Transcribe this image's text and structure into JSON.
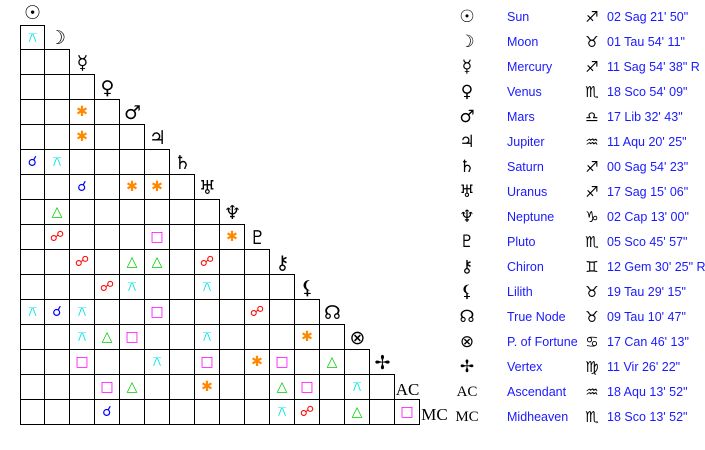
{
  "bodies": [
    {
      "name": "Sun",
      "glyph": "☉",
      "sign_glyph": "♐",
      "position": "02 Sag 21' 50\""
    },
    {
      "name": "Moon",
      "glyph": "☽",
      "sign_glyph": "♉",
      "position": "01 Tau 54' 11\""
    },
    {
      "name": "Mercury",
      "glyph": "☿",
      "sign_glyph": "♐",
      "position": "11 Sag 54' 38\" R"
    },
    {
      "name": "Venus",
      "glyph": "♀",
      "sign_glyph": "♏",
      "position": "18 Sco 54' 09\""
    },
    {
      "name": "Mars",
      "glyph": "♂",
      "sign_glyph": "♎",
      "position": "17 Lib 32' 43\""
    },
    {
      "name": "Jupiter",
      "glyph": "♃",
      "sign_glyph": "♒",
      "position": "11 Aqu 20' 25\""
    },
    {
      "name": "Saturn",
      "glyph": "♄",
      "sign_glyph": "♐",
      "position": "00 Sag 54' 23\""
    },
    {
      "name": "Uranus",
      "glyph": "♅",
      "sign_glyph": "♐",
      "position": "17 Sag 15' 06\""
    },
    {
      "name": "Neptune",
      "glyph": "♆",
      "sign_glyph": "♑",
      "position": "02 Cap 13' 00\""
    },
    {
      "name": "Pluto",
      "glyph": "♇",
      "sign_glyph": "♏",
      "position": "05 Sco 45' 57\""
    },
    {
      "name": "Chiron",
      "glyph": "⚷",
      "sign_glyph": "♊",
      "position": "12 Gem 30' 25\" R"
    },
    {
      "name": "Lilith",
      "glyph": "⚸",
      "sign_glyph": "♉",
      "position": "19 Tau 29' 15\""
    },
    {
      "name": "True Node",
      "glyph": "☊",
      "sign_glyph": "♉",
      "position": "09 Tau 10' 47\""
    },
    {
      "name": "P. of Fortune",
      "glyph": "⊗",
      "sign_glyph": "♋",
      "position": "17 Can 46' 13\""
    },
    {
      "name": "Vertex",
      "glyph": "✢",
      "sign_glyph": "♍",
      "position": "11 Vir 26' 22\""
    },
    {
      "name": "Ascendant",
      "glyph": "AC",
      "sign_glyph": "♒",
      "position": "18 Aqu 13' 52\""
    },
    {
      "name": "Midheaven",
      "glyph": "MC",
      "sign_glyph": "♏",
      "position": "18 Sco 13' 52\""
    }
  ],
  "aspect_types": {
    "conjunction": {
      "symbol": "☌",
      "color": "#0000ff"
    },
    "opposition": {
      "symbol": "☍",
      "color": "#ff0000"
    },
    "trine": {
      "symbol": "△",
      "color": "#00cc00"
    },
    "square": {
      "symbol": "□",
      "color": "#ff00ff"
    },
    "sextile": {
      "symbol": "✱",
      "color": "#ff8800"
    },
    "quincunx": {
      "symbol": "⚻",
      "color": "#00e5e5"
    }
  },
  "aspects": [
    {
      "a": "Moon",
      "b": "Sun",
      "type": "quincunx"
    },
    {
      "a": "Mars",
      "b": "Mercury",
      "type": "sextile"
    },
    {
      "a": "Jupiter",
      "b": "Mercury",
      "type": "sextile"
    },
    {
      "a": "Saturn",
      "b": "Sun",
      "type": "conjunction"
    },
    {
      "a": "Saturn",
      "b": "Moon",
      "type": "quincunx"
    },
    {
      "a": "Uranus",
      "b": "Mercury",
      "type": "conjunction"
    },
    {
      "a": "Uranus",
      "b": "Mars",
      "type": "sextile"
    },
    {
      "a": "Uranus",
      "b": "Jupiter",
      "type": "sextile"
    },
    {
      "a": "Neptune",
      "b": "Moon",
      "type": "trine"
    },
    {
      "a": "Pluto",
      "b": "Moon",
      "type": "opposition"
    },
    {
      "a": "Pluto",
      "b": "Jupiter",
      "type": "square"
    },
    {
      "a": "Pluto",
      "b": "Neptune",
      "type": "sextile"
    },
    {
      "a": "Chiron",
      "b": "Mercury",
      "type": "opposition"
    },
    {
      "a": "Chiron",
      "b": "Mars",
      "type": "trine"
    },
    {
      "a": "Chiron",
      "b": "Jupiter",
      "type": "trine"
    },
    {
      "a": "Chiron",
      "b": "Uranus",
      "type": "opposition"
    },
    {
      "a": "Lilith",
      "b": "Venus",
      "type": "opposition"
    },
    {
      "a": "Lilith",
      "b": "Mars",
      "type": "quincunx"
    },
    {
      "a": "Lilith",
      "b": "Uranus",
      "type": "quincunx"
    },
    {
      "a": "True Node",
      "b": "Sun",
      "type": "quincunx"
    },
    {
      "a": "True Node",
      "b": "Moon",
      "type": "conjunction"
    },
    {
      "a": "True Node",
      "b": "Mercury",
      "type": "quincunx"
    },
    {
      "a": "True Node",
      "b": "Jupiter",
      "type": "square"
    },
    {
      "a": "True Node",
      "b": "Pluto",
      "type": "opposition"
    },
    {
      "a": "P. of Fortune",
      "b": "Mercury",
      "type": "quincunx"
    },
    {
      "a": "P. of Fortune",
      "b": "Venus",
      "type": "trine"
    },
    {
      "a": "P. of Fortune",
      "b": "Mars",
      "type": "square"
    },
    {
      "a": "P. of Fortune",
      "b": "Uranus",
      "type": "quincunx"
    },
    {
      "a": "P. of Fortune",
      "b": "Lilith",
      "type": "sextile"
    },
    {
      "a": "Vertex",
      "b": "Mercury",
      "type": "square"
    },
    {
      "a": "Vertex",
      "b": "Jupiter",
      "type": "quincunx"
    },
    {
      "a": "Vertex",
      "b": "Uranus",
      "type": "square"
    },
    {
      "a": "Vertex",
      "b": "Pluto",
      "type": "sextile"
    },
    {
      "a": "Vertex",
      "b": "Chiron",
      "type": "square"
    },
    {
      "a": "Vertex",
      "b": "True Node",
      "type": "trine"
    },
    {
      "a": "Ascendant",
      "b": "Venus",
      "type": "square"
    },
    {
      "a": "Ascendant",
      "b": "Mars",
      "type": "trine"
    },
    {
      "a": "Ascendant",
      "b": "Uranus",
      "type": "sextile"
    },
    {
      "a": "Ascendant",
      "b": "Chiron",
      "type": "trine"
    },
    {
      "a": "Ascendant",
      "b": "Lilith",
      "type": "square"
    },
    {
      "a": "Ascendant",
      "b": "P. of Fortune",
      "type": "quincunx"
    },
    {
      "a": "Midheaven",
      "b": "Venus",
      "type": "conjunction"
    },
    {
      "a": "Midheaven",
      "b": "Chiron",
      "type": "quincunx"
    },
    {
      "a": "Midheaven",
      "b": "Lilith",
      "type": "opposition"
    },
    {
      "a": "Midheaven",
      "b": "P. of Fortune",
      "type": "trine"
    },
    {
      "a": "Midheaven",
      "b": "Ascendant",
      "type": "square"
    }
  ]
}
